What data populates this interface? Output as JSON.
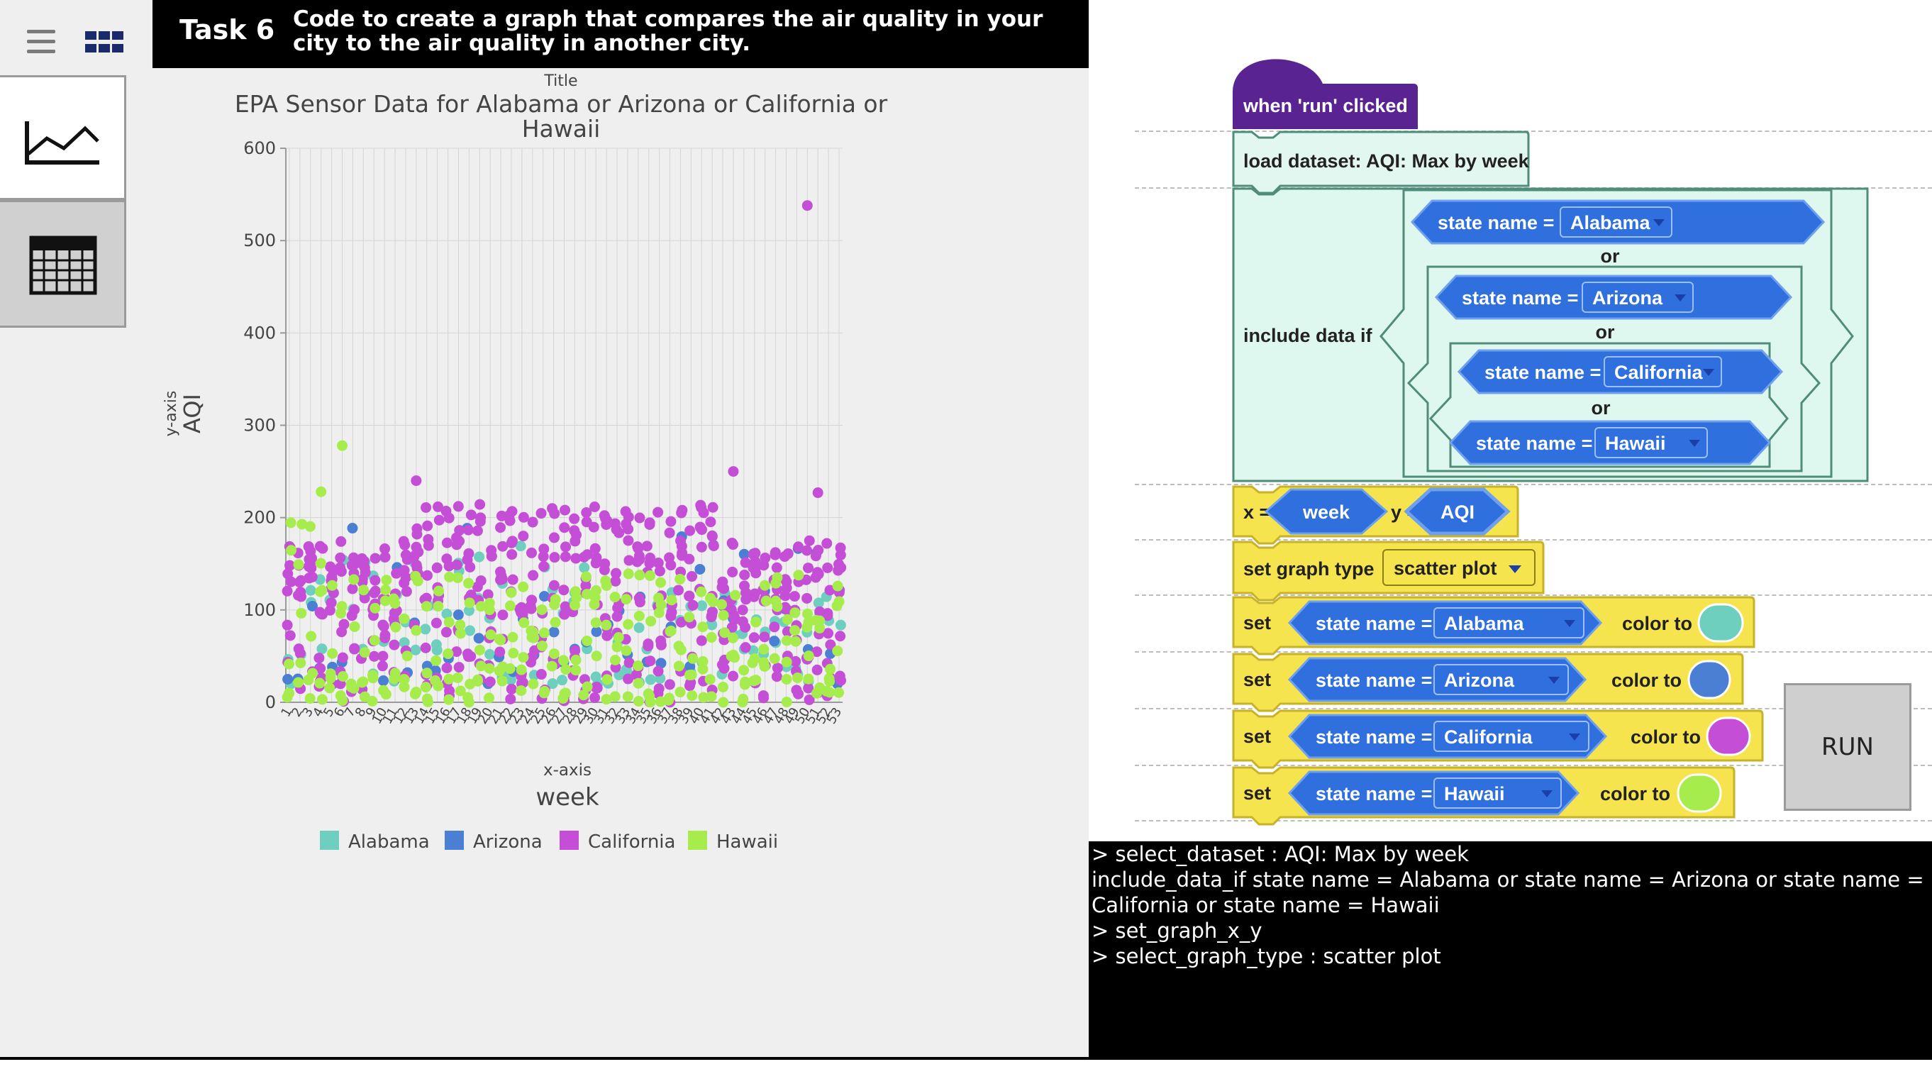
{
  "header": {
    "task_label": "Task 6",
    "task_description": "Code to create a graph that compares the air quality in your city to the air quality in another city."
  },
  "sidebar": {
    "items": [
      {
        "name": "graph-view",
        "icon": "line-chart-icon"
      },
      {
        "name": "table-view",
        "icon": "table-icon"
      }
    ]
  },
  "chart_data": {
    "type": "scatter",
    "title_caption": "Title",
    "title": "EPA Sensor Data for Alabama or Arizona or California or Hawaii",
    "title_line1": "EPA Sensor Data for Alabama or Arizona or California or",
    "title_line2": "Hawaii",
    "xaxis_caption": "x-axis",
    "xlabel": "week",
    "yaxis_caption": "y-axis",
    "ylabel": "AQI",
    "ylim": [
      0,
      600
    ],
    "yticks": [
      0,
      100,
      200,
      300,
      400,
      500,
      600
    ],
    "xlim": [
      1,
      53
    ],
    "legend_position": "bottom",
    "grid": true,
    "series": [
      {
        "name": "Alabama",
        "color": "#6ecfbf",
        "range": [
          20,
          170
        ]
      },
      {
        "name": "Arizona",
        "color": "#4a7fd4",
        "range": [
          20,
          190
        ]
      },
      {
        "name": "California",
        "color": "#c44fd6",
        "range": [
          0,
          215
        ]
      },
      {
        "name": "Hawaii",
        "color": "#a7ec4d",
        "range": [
          0,
          200
        ]
      }
    ],
    "outliers": [
      {
        "x": 6,
        "y": 278,
        "series": "Hawaii"
      },
      {
        "x": 4,
        "y": 228,
        "series": "Hawaii"
      },
      {
        "x": 13,
        "y": 240,
        "series": "California"
      },
      {
        "x": 43,
        "y": 250,
        "series": "California"
      },
      {
        "x": 50,
        "y": 538,
        "series": "California"
      },
      {
        "x": 51,
        "y": 227,
        "series": "California"
      }
    ]
  },
  "blocks": {
    "event": "when 'run' clicked",
    "load": "load dataset: AQI: Max by week",
    "include": "include data if",
    "or": "or",
    "state_label": "state name =",
    "states": [
      "Alabama",
      "Arizona",
      "California",
      "Hawaii"
    ],
    "x_label": "x =",
    "x_value": "week",
    "y_label": "y =",
    "y_value": "AQI",
    "graph_type_label": "set graph type",
    "graph_type_value": "scatter plot",
    "set_label": "set",
    "color_label": "color to",
    "colors": [
      "#6ecfbf",
      "#4a7fd4",
      "#c44fd6",
      "#a7ec4d"
    ]
  },
  "run_label": "RUN",
  "console": [
    "> select_dataset : AQI: Max by week",
    "include_data_if state name = Alabama or state name = Arizona or state name = California or state name = Hawaii",
    "> set_graph_x_y",
    "> select_graph_type : scatter plot"
  ]
}
